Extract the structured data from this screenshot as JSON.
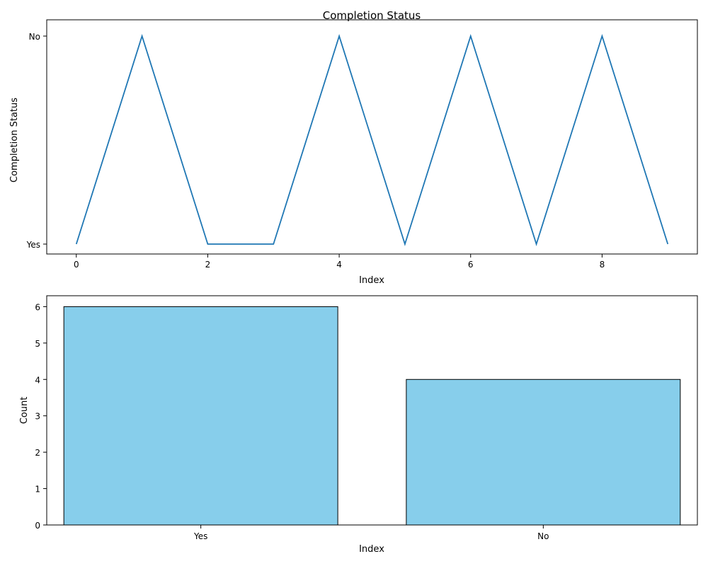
{
  "chart_data": [
    {
      "type": "line",
      "title": "Completion Status",
      "xlabel": "Index",
      "ylabel": "Completion Status",
      "x": [
        0,
        1,
        2,
        3,
        4,
        5,
        6,
        7,
        8,
        9
      ],
      "values": [
        "Yes",
        "No",
        "Yes",
        "Yes",
        "No",
        "Yes",
        "No",
        "Yes",
        "No",
        "Yes"
      ],
      "y_categories": [
        "Yes",
        "No"
      ],
      "x_ticks": [
        "0",
        "2",
        "4",
        "6",
        "8"
      ],
      "xlim": [
        -0.45,
        9.45
      ],
      "line_color": "#1f77b4",
      "grid": false
    },
    {
      "type": "bar",
      "title": "",
      "xlabel": "Index",
      "ylabel": "Count",
      "categories": [
        "Yes",
        "No"
      ],
      "values": [
        6,
        4
      ],
      "y_ticks": [
        "0",
        "1",
        "2",
        "3",
        "4",
        "5",
        "6"
      ],
      "ylim": [
        0,
        6.3
      ],
      "bar_color": "#87ceeb",
      "edge_color": "#000000",
      "grid": false
    }
  ]
}
